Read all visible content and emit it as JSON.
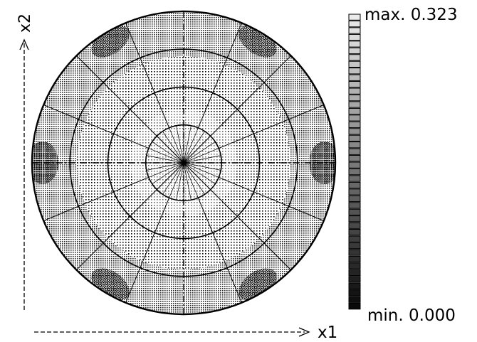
{
  "axes": {
    "x_label": "x1",
    "y_label": "x2"
  },
  "legend": {
    "max_label": "max. 0.323",
    "min_label": "min. 0.000",
    "max_value": 0.323,
    "min_value": 0.0,
    "steps": 44
  },
  "plot": {
    "type": "polar contour plot",
    "rings": 4,
    "radial_lines": 16
  },
  "colors": {
    "ink": "#000000",
    "background": "#ffffff"
  }
}
